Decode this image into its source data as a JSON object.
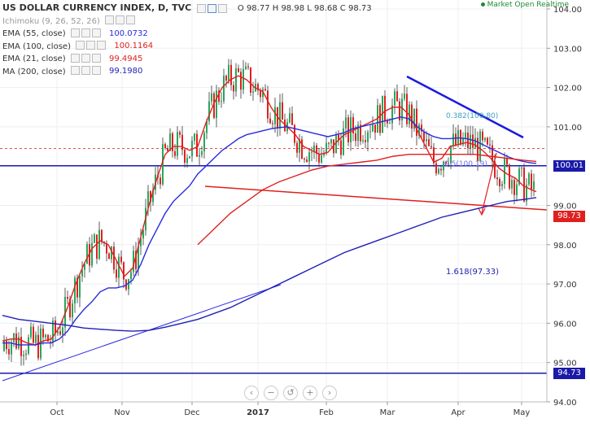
{
  "chart_data": {
    "type": "line",
    "title": "US DOLLAR CURRENCY INDEX, D, TVC",
    "ohlc": {
      "open": "98.77",
      "high": "98.98",
      "low": "98.68",
      "close": "98.73"
    },
    "ohlc_line": "O 98.77 H 98.98 L 98.68 C 98.73",
    "status": "Market Open Realtime",
    "x_ticks": [
      "Oct",
      "Nov",
      "Dec",
      "2017",
      "Feb",
      "Mar",
      "Apr",
      "May"
    ],
    "y_ticks": [
      "104.00",
      "103.00",
      "102.00",
      "101.00",
      "99.00",
      "98.00",
      "97.00",
      "96.00",
      "95.00",
      "94.00"
    ],
    "ylim": [
      94,
      104.1
    ],
    "indicators": [
      {
        "label": "Ichimoku (9, 26, 52, 26)",
        "value": ""
      },
      {
        "label": "EMA (55, close)",
        "value": "100.0732",
        "color": "#2a2ae0"
      },
      {
        "label": "EMA (100, close)",
        "value": "100.1164",
        "color": "#e0201e"
      },
      {
        "label": "EMA (21, close)",
        "value": "99.4945",
        "color": "#e0201e"
      },
      {
        "label": "MA (200, close)",
        "value": "99.1980",
        "color": "#1f1fb8"
      }
    ],
    "price_labels": [
      {
        "text": "100.01",
        "value": 100.01,
        "color": "#1a1aa8"
      },
      {
        "text": "98.73",
        "value": 98.73,
        "color": "#e0201e"
      },
      {
        "text": "94.73",
        "value": 94.73,
        "color": "#1a1aa8"
      }
    ],
    "annotations": [
      {
        "text": "1.618(97.33)",
        "color": "#2020b0"
      },
      {
        "text": "0.5(100.19)",
        "color": "#7070e0"
      },
      {
        "text": "0.382(100.80)",
        "color": "#40a0c0"
      }
    ],
    "series": [
      {
        "name": "EMA (21, close)",
        "color": "#e0201e",
        "x": [
          0,
          10,
          20,
          30,
          40,
          50,
          60,
          70,
          80,
          90,
          100,
          110,
          120,
          130,
          140,
          150,
          160,
          170,
          180,
          190,
          200,
          210,
          220,
          230,
          240,
          250,
          260,
          270,
          280,
          290,
          300,
          310,
          320,
          330,
          340,
          350,
          360,
          370,
          380,
          390,
          400,
          410,
          420,
          430,
          440,
          450,
          460,
          470,
          480,
          490,
          500,
          510,
          520,
          530,
          540,
          550,
          560,
          570,
          580,
          590,
          600,
          610,
          620,
          630,
          640,
          650,
          656
        ],
        "y": [
          95.55,
          95.6,
          95.6,
          95.5,
          95.45,
          95.55,
          95.6,
          95.9,
          96.4,
          97.0,
          97.5,
          97.9,
          98.1,
          98.0,
          97.6,
          97.2,
          97.4,
          98.2,
          99.0,
          99.7,
          100.3,
          100.5,
          100.5,
          100.4,
          100.5,
          101.1,
          101.6,
          102.0,
          102.2,
          102.3,
          102.2,
          102.0,
          101.9,
          101.5,
          101.2,
          101.0,
          100.8,
          100.5,
          100.4,
          100.3,
          100.35,
          100.6,
          100.8,
          100.9,
          101.0,
          101.1,
          101.2,
          101.4,
          101.5,
          101.5,
          101.3,
          100.9,
          100.5,
          100.1,
          100.2,
          100.5,
          100.55,
          100.6,
          100.55,
          100.4,
          100.2,
          99.95,
          99.8,
          99.7,
          99.5,
          99.4,
          99.35
        ]
      },
      {
        "name": "EMA (55, close)",
        "color": "#2a2ae0",
        "x": [
          0,
          10,
          20,
          30,
          40,
          50,
          60,
          70,
          80,
          90,
          100,
          110,
          120,
          130,
          140,
          150,
          160,
          170,
          180,
          190,
          200,
          210,
          220,
          230,
          240,
          250,
          260,
          270,
          280,
          290,
          300,
          310,
          320,
          330,
          340,
          350,
          360,
          370,
          380,
          390,
          400,
          410,
          420,
          430,
          440,
          450,
          460,
          470,
          480,
          490,
          500,
          510,
          520,
          530,
          540,
          550,
          560,
          570,
          580,
          590,
          600,
          610,
          620,
          630,
          640,
          650,
          656
        ],
        "y": [
          95.5,
          95.5,
          95.45,
          95.45,
          95.45,
          95.5,
          95.5,
          95.6,
          95.8,
          96.1,
          96.35,
          96.55,
          96.8,
          96.9,
          96.9,
          96.95,
          97.1,
          97.5,
          98.0,
          98.4,
          98.8,
          99.1,
          99.3,
          99.5,
          99.8,
          100.0,
          100.2,
          100.4,
          100.55,
          100.7,
          100.8,
          100.85,
          100.9,
          100.95,
          100.98,
          101.0,
          100.95,
          100.9,
          100.85,
          100.8,
          100.75,
          100.8,
          100.85,
          100.95,
          101.0,
          101.05,
          101.1,
          101.15,
          101.2,
          101.25,
          101.2,
          101.0,
          100.85,
          100.75,
          100.7,
          100.7,
          100.72,
          100.7,
          100.65,
          100.55,
          100.45,
          100.35,
          100.25,
          100.17,
          100.12,
          100.08,
          100.07
        ]
      },
      {
        "name": "EMA (100, close)",
        "color": "#e0201e",
        "x": [
          240,
          260,
          280,
          300,
          320,
          340,
          360,
          380,
          400,
          420,
          440,
          460,
          480,
          500,
          520,
          540,
          560,
          580,
          600,
          620,
          640,
          656
        ],
        "y": [
          98.0,
          98.4,
          98.8,
          99.1,
          99.4,
          99.6,
          99.75,
          99.9,
          100.0,
          100.05,
          100.1,
          100.15,
          100.25,
          100.3,
          100.3,
          100.3,
          100.3,
          100.3,
          100.25,
          100.2,
          100.15,
          100.12
        ]
      },
      {
        "name": "MA (200, close)",
        "color": "#1f1fb8",
        "x": [
          0,
          20,
          40,
          60,
          80,
          100,
          120,
          140,
          160,
          180,
          200,
          220,
          240,
          260,
          280,
          300,
          320,
          340,
          360,
          380,
          400,
          420,
          440,
          460,
          480,
          500,
          520,
          540,
          560,
          580,
          600,
          620,
          640,
          656
        ],
        "y": [
          96.2,
          96.1,
          96.05,
          96.0,
          95.95,
          95.88,
          95.85,
          95.82,
          95.8,
          95.82,
          95.9,
          96.0,
          96.1,
          96.25,
          96.4,
          96.6,
          96.8,
          97.0,
          97.2,
          97.4,
          97.6,
          97.8,
          97.95,
          98.1,
          98.25,
          98.4,
          98.55,
          98.7,
          98.8,
          98.9,
          99.0,
          99.1,
          99.15,
          99.2
        ]
      }
    ]
  }
}
